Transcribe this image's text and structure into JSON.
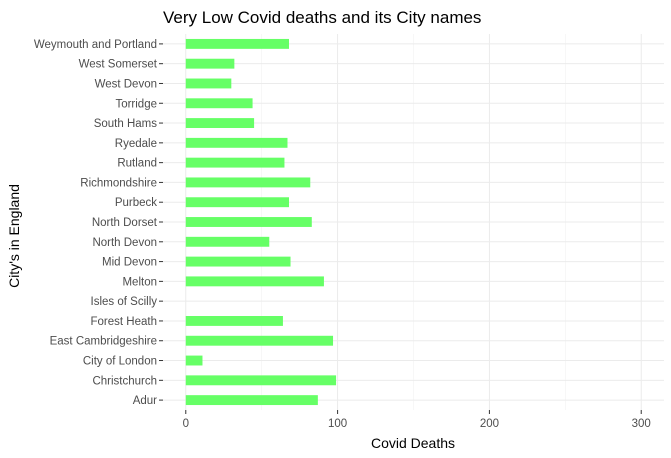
{
  "chart_data": {
    "type": "bar",
    "orientation": "horizontal",
    "title": "Very Low Covid deaths and its City names",
    "xlabel": "Covid Deaths",
    "ylabel": "City's in England",
    "xlim": [
      -15,
      315
    ],
    "xticks": [
      0,
      100,
      200,
      300
    ],
    "grid": true,
    "bar_color": "#66ff66",
    "categories": [
      "Adur",
      "Christchurch",
      "City of London",
      "East Cambridgeshire",
      "Forest Heath",
      "Isles of Scilly",
      "Melton",
      "Mid Devon",
      "North Devon",
      "North Dorset",
      "Purbeck",
      "Richmondshire",
      "Rutland",
      "Ryedale",
      "South Hams",
      "Torridge",
      "West Devon",
      "West Somerset",
      "Weymouth and Portland"
    ],
    "values": [
      87,
      99,
      11,
      97,
      64,
      0,
      91,
      69,
      55,
      83,
      68,
      82,
      65,
      67,
      45,
      44,
      30,
      32,
      68
    ]
  }
}
